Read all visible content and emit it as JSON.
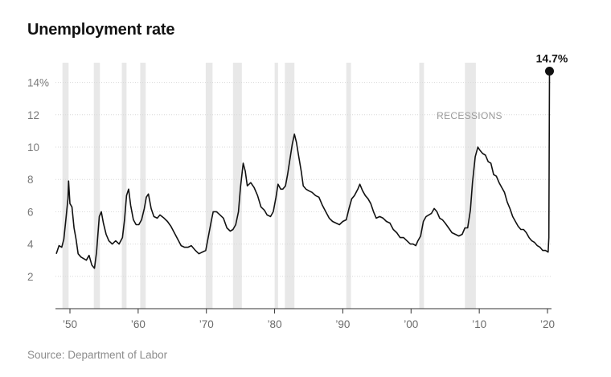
{
  "chart_data": {
    "type": "line",
    "title": "Unemployment rate",
    "source": "Source: Department of Labor",
    "recession_label": "RECESSIONS",
    "callout_label": "14.7%",
    "callout_value": 14.7,
    "callout_year": 2020.3,
    "ylim": [
      0,
      16
    ],
    "xlim": [
      1948,
      2020.5
    ],
    "y_ticks": [
      {
        "value": 14,
        "label": "14%"
      },
      {
        "value": 12,
        "label": "12"
      },
      {
        "value": 10,
        "label": "10"
      },
      {
        "value": 8,
        "label": "8"
      },
      {
        "value": 6,
        "label": "6"
      },
      {
        "value": 4,
        "label": "4"
      },
      {
        "value": 2,
        "label": "2"
      }
    ],
    "x_ticks": [
      {
        "value": 1950,
        "label": "’50"
      },
      {
        "value": 1960,
        "label": "’60"
      },
      {
        "value": 1970,
        "label": "’70"
      },
      {
        "value": 1980,
        "label": "’80"
      },
      {
        "value": 1990,
        "label": "’90"
      },
      {
        "value": 2000,
        "label": "’00"
      },
      {
        "value": 2010,
        "label": "’10"
      },
      {
        "value": 2020,
        "label": "’20"
      }
    ],
    "recessions": [
      [
        1948.9,
        1949.8
      ],
      [
        1953.5,
        1954.4
      ],
      [
        1957.6,
        1958.3
      ],
      [
        1960.3,
        1961.1
      ],
      [
        1969.9,
        1970.9
      ],
      [
        1973.9,
        1975.2
      ],
      [
        1980.0,
        1980.5
      ],
      [
        1981.5,
        1982.9
      ],
      [
        1990.5,
        1991.2
      ],
      [
        2001.2,
        2001.9
      ],
      [
        2007.9,
        2009.5
      ]
    ],
    "series": [
      {
        "name": "Unemployment rate",
        "points": [
          [
            1948.0,
            3.4
          ],
          [
            1948.4,
            3.9
          ],
          [
            1948.8,
            3.8
          ],
          [
            1949.1,
            4.3
          ],
          [
            1949.4,
            5.5
          ],
          [
            1949.7,
            6.8
          ],
          [
            1949.8,
            7.9
          ],
          [
            1950.0,
            6.5
          ],
          [
            1950.3,
            6.3
          ],
          [
            1950.6,
            5.0
          ],
          [
            1950.9,
            4.3
          ],
          [
            1951.2,
            3.4
          ],
          [
            1951.6,
            3.2
          ],
          [
            1952.0,
            3.1
          ],
          [
            1952.4,
            3.0
          ],
          [
            1952.8,
            3.3
          ],
          [
            1953.2,
            2.7
          ],
          [
            1953.6,
            2.5
          ],
          [
            1953.9,
            3.5
          ],
          [
            1954.3,
            5.7
          ],
          [
            1954.6,
            6.0
          ],
          [
            1954.9,
            5.3
          ],
          [
            1955.3,
            4.6
          ],
          [
            1955.7,
            4.2
          ],
          [
            1956.2,
            4.0
          ],
          [
            1956.7,
            4.2
          ],
          [
            1957.2,
            4.0
          ],
          [
            1957.7,
            4.4
          ],
          [
            1958.0,
            5.5
          ],
          [
            1958.3,
            7.0
          ],
          [
            1958.6,
            7.4
          ],
          [
            1958.9,
            6.4
          ],
          [
            1959.3,
            5.5
          ],
          [
            1959.7,
            5.2
          ],
          [
            1960.1,
            5.2
          ],
          [
            1960.5,
            5.5
          ],
          [
            1960.9,
            6.2
          ],
          [
            1961.2,
            6.9
          ],
          [
            1961.5,
            7.1
          ],
          [
            1961.9,
            6.2
          ],
          [
            1962.3,
            5.7
          ],
          [
            1962.8,
            5.6
          ],
          [
            1963.2,
            5.8
          ],
          [
            1963.8,
            5.6
          ],
          [
            1964.3,
            5.4
          ],
          [
            1964.8,
            5.1
          ],
          [
            1965.3,
            4.7
          ],
          [
            1965.8,
            4.3
          ],
          [
            1966.3,
            3.9
          ],
          [
            1966.8,
            3.8
          ],
          [
            1967.3,
            3.8
          ],
          [
            1967.8,
            3.9
          ],
          [
            1968.4,
            3.6
          ],
          [
            1968.9,
            3.4
          ],
          [
            1969.4,
            3.5
          ],
          [
            1969.9,
            3.6
          ],
          [
            1970.3,
            4.5
          ],
          [
            1970.7,
            5.4
          ],
          [
            1971.0,
            6.0
          ],
          [
            1971.5,
            6.0
          ],
          [
            1972.0,
            5.8
          ],
          [
            1972.5,
            5.6
          ],
          [
            1973.0,
            5.0
          ],
          [
            1973.5,
            4.8
          ],
          [
            1973.9,
            4.9
          ],
          [
            1974.3,
            5.2
          ],
          [
            1974.7,
            6.0
          ],
          [
            1975.0,
            7.5
          ],
          [
            1975.4,
            9.0
          ],
          [
            1975.7,
            8.5
          ],
          [
            1976.0,
            7.6
          ],
          [
            1976.5,
            7.8
          ],
          [
            1977.0,
            7.5
          ],
          [
            1977.5,
            7.0
          ],
          [
            1978.0,
            6.3
          ],
          [
            1978.5,
            6.1
          ],
          [
            1978.9,
            5.8
          ],
          [
            1979.4,
            5.7
          ],
          [
            1979.8,
            6.0
          ],
          [
            1980.2,
            6.9
          ],
          [
            1980.5,
            7.7
          ],
          [
            1980.9,
            7.4
          ],
          [
            1981.2,
            7.4
          ],
          [
            1981.6,
            7.6
          ],
          [
            1981.9,
            8.3
          ],
          [
            1982.3,
            9.4
          ],
          [
            1982.6,
            10.2
          ],
          [
            1982.9,
            10.8
          ],
          [
            1983.2,
            10.3
          ],
          [
            1983.5,
            9.5
          ],
          [
            1983.9,
            8.5
          ],
          [
            1984.2,
            7.6
          ],
          [
            1984.6,
            7.4
          ],
          [
            1985.0,
            7.3
          ],
          [
            1985.5,
            7.2
          ],
          [
            1986.0,
            7.0
          ],
          [
            1986.5,
            6.9
          ],
          [
            1987.0,
            6.4
          ],
          [
            1987.5,
            6.0
          ],
          [
            1988.0,
            5.6
          ],
          [
            1988.5,
            5.4
          ],
          [
            1989.0,
            5.3
          ],
          [
            1989.5,
            5.2
          ],
          [
            1990.0,
            5.4
          ],
          [
            1990.5,
            5.5
          ],
          [
            1990.9,
            6.2
          ],
          [
            1991.3,
            6.8
          ],
          [
            1991.7,
            7.0
          ],
          [
            1992.2,
            7.4
          ],
          [
            1992.5,
            7.7
          ],
          [
            1992.9,
            7.3
          ],
          [
            1993.3,
            7.0
          ],
          [
            1993.7,
            6.8
          ],
          [
            1994.1,
            6.5
          ],
          [
            1994.5,
            6.0
          ],
          [
            1994.9,
            5.6
          ],
          [
            1995.4,
            5.7
          ],
          [
            1995.9,
            5.6
          ],
          [
            1996.4,
            5.4
          ],
          [
            1996.9,
            5.3
          ],
          [
            1997.4,
            4.9
          ],
          [
            1997.9,
            4.7
          ],
          [
            1998.4,
            4.4
          ],
          [
            1998.9,
            4.4
          ],
          [
            1999.4,
            4.2
          ],
          [
            1999.9,
            4.0
          ],
          [
            2000.3,
            4.0
          ],
          [
            2000.7,
            3.9
          ],
          [
            2001.0,
            4.2
          ],
          [
            2001.4,
            4.5
          ],
          [
            2001.8,
            5.4
          ],
          [
            2002.2,
            5.7
          ],
          [
            2002.6,
            5.8
          ],
          [
            2003.0,
            5.9
          ],
          [
            2003.4,
            6.2
          ],
          [
            2003.8,
            6.0
          ],
          [
            2004.2,
            5.6
          ],
          [
            2004.6,
            5.5
          ],
          [
            2005.0,
            5.3
          ],
          [
            2005.5,
            5.0
          ],
          [
            2006.0,
            4.7
          ],
          [
            2006.5,
            4.6
          ],
          [
            2007.0,
            4.5
          ],
          [
            2007.5,
            4.6
          ],
          [
            2007.9,
            5.0
          ],
          [
            2008.3,
            5.0
          ],
          [
            2008.7,
            6.1
          ],
          [
            2009.0,
            7.8
          ],
          [
            2009.4,
            9.4
          ],
          [
            2009.8,
            10.0
          ],
          [
            2010.1,
            9.8
          ],
          [
            2010.5,
            9.6
          ],
          [
            2010.9,
            9.5
          ],
          [
            2011.3,
            9.1
          ],
          [
            2011.7,
            9.0
          ],
          [
            2012.1,
            8.3
          ],
          [
            2012.5,
            8.2
          ],
          [
            2012.9,
            7.8
          ],
          [
            2013.3,
            7.5
          ],
          [
            2013.7,
            7.2
          ],
          [
            2014.1,
            6.6
          ],
          [
            2014.5,
            6.2
          ],
          [
            2014.9,
            5.7
          ],
          [
            2015.3,
            5.4
          ],
          [
            2015.7,
            5.1
          ],
          [
            2016.1,
            4.9
          ],
          [
            2016.5,
            4.9
          ],
          [
            2016.9,
            4.7
          ],
          [
            2017.3,
            4.4
          ],
          [
            2017.7,
            4.2
          ],
          [
            2018.1,
            4.1
          ],
          [
            2018.5,
            3.9
          ],
          [
            2018.9,
            3.8
          ],
          [
            2019.3,
            3.6
          ],
          [
            2019.7,
            3.6
          ],
          [
            2020.1,
            3.5
          ],
          [
            2020.2,
            4.4
          ],
          [
            2020.3,
            14.7
          ]
        ]
      }
    ]
  }
}
